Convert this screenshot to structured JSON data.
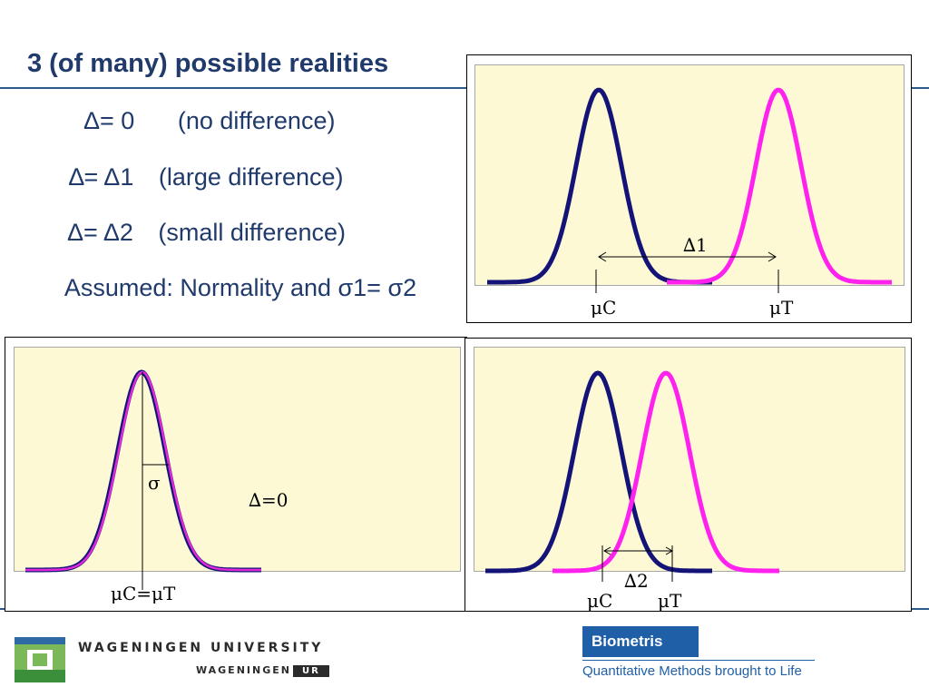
{
  "title": "3 (of many) possible realities",
  "bullets": [
    {
      "left": "Δ= 0",
      "right": "(no difference)"
    },
    {
      "left": "∆= Δ1",
      "right": "(large difference)"
    },
    {
      "left": "Δ= Δ2",
      "right": "(small difference)"
    }
  ],
  "assumed": "Assumed: Normality and σ1= σ2",
  "panels": {
    "large": {
      "mu_c": "μC",
      "mu_t": "μT",
      "delta": "∆1"
    },
    "zero": {
      "sigma": "σ",
      "delta": "∆=0",
      "mu": "μC=μT"
    },
    "small": {
      "mu_c": "μC",
      "mu_t": "μT",
      "delta": "∆2"
    }
  },
  "colors": {
    "control": "#141478",
    "treatment": "#ff22ee",
    "plot_bg": "#fcf9d4",
    "accent": "#1f5fa8"
  },
  "footer": {
    "university": "WAGENINGEN UNIVERSITY",
    "wageningen": "WAGENINGEN",
    "ur": "UR",
    "biometris": "Biometris",
    "tagline": "Quantitative Methods brought to Life"
  }
}
